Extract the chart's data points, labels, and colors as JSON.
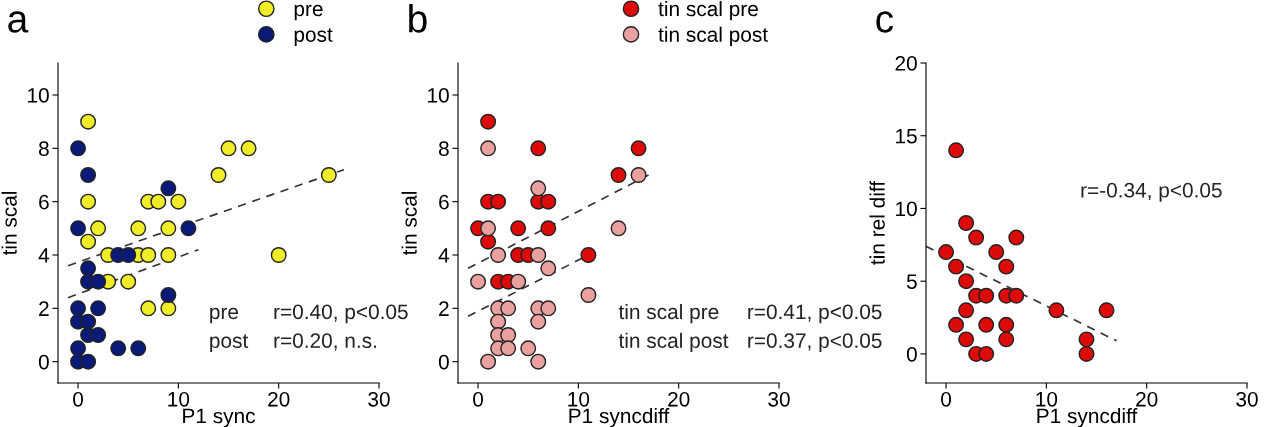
{
  "chart_data": [
    {
      "type": "scatter",
      "title": "a",
      "xlabel": "P1 sync",
      "ylabel": "tin scal",
      "xlim": [
        -2,
        30
      ],
      "ylim": [
        -0.8,
        11.2
      ],
      "xticks": [
        0,
        10,
        20,
        30
      ],
      "yticks": [
        0,
        2,
        4,
        6,
        8,
        10
      ],
      "grid": false,
      "legend": "top",
      "marker": "circle",
      "series": [
        {
          "name": "pre",
          "color": "#f0ec28",
          "x": [
            1,
            15,
            17,
            14,
            25,
            1,
            7,
            8,
            10,
            2,
            6,
            9,
            1,
            3,
            6,
            7,
            9,
            20,
            3,
            5,
            7,
            9
          ],
          "values": [
            9,
            8,
            8,
            7,
            7,
            6,
            6,
            6,
            6,
            5,
            5,
            5,
            4.5,
            4,
            4,
            4,
            4,
            4,
            3,
            3,
            2,
            2
          ]
        },
        {
          "name": "post",
          "color": "#0a1a78",
          "x": [
            0,
            1,
            9,
            0,
            11,
            4,
            5,
            1,
            1,
            2,
            9,
            0,
            2,
            0,
            1,
            1,
            2,
            0,
            4,
            6,
            0,
            1
          ],
          "values": [
            8,
            7,
            6.5,
            5,
            5,
            4,
            4,
            3.5,
            3,
            3,
            2.5,
            2,
            2,
            1.5,
            1.5,
            1,
            1,
            0.5,
            0.5,
            0.5,
            0,
            0
          ]
        },
        {
          "type": "line",
          "line_style": "dashed",
          "marker": "none",
          "color": "#333333",
          "x": [
            -1,
            26.5
          ],
          "values": [
            3.6,
            7.2
          ]
        },
        {
          "type": "line",
          "line_style": "dashed",
          "marker": "none",
          "color": "#333333",
          "x": [
            -1,
            12
          ],
          "values": [
            2.4,
            4.2
          ]
        }
      ],
      "annotations": [
        "pre",
        "r=0.40, p<0.05",
        "post",
        "r=0.20, n.s."
      ]
    },
    {
      "type": "scatter",
      "title": "b",
      "xlabel": "P1 syncdiff",
      "ylabel": "tin scal",
      "xlim": [
        -2,
        30
      ],
      "ylim": [
        -0.8,
        11.2
      ],
      "xticks": [
        0,
        10,
        20,
        30
      ],
      "yticks": [
        0,
        2,
        4,
        6,
        8,
        10
      ],
      "grid": false,
      "legend": "top",
      "marker": "circle",
      "series": [
        {
          "name": "tin scal pre",
          "color": "#dd0a0a",
          "x": [
            1,
            6,
            16,
            14,
            1,
            2,
            6,
            7,
            0,
            4,
            7,
            1,
            4,
            5,
            11,
            2,
            3
          ],
          "values": [
            9,
            8,
            8,
            7,
            6,
            6,
            6,
            6,
            5,
            5,
            5,
            4.5,
            4,
            4,
            4,
            3,
            3
          ]
        },
        {
          "name": "tin scal post",
          "color": "#eba0a0",
          "x": [
            1,
            16,
            6,
            1,
            14,
            2,
            6,
            7,
            0,
            4,
            11,
            2,
            3,
            6,
            7,
            2,
            6,
            2,
            3,
            2,
            3,
            5,
            1,
            6
          ],
          "values": [
            8,
            7,
            6.5,
            5,
            5,
            4,
            4,
            3.5,
            3,
            3,
            2.5,
            2,
            2,
            2,
            2,
            1.5,
            1.5,
            1,
            1,
            0.5,
            0.5,
            0.5,
            0,
            0
          ]
        },
        {
          "type": "line",
          "line_style": "dashed",
          "marker": "none",
          "color": "#333333",
          "x": [
            -1,
            17
          ],
          "values": [
            3.5,
            7
          ]
        },
        {
          "type": "line",
          "line_style": "dashed",
          "marker": "none",
          "color": "#333333",
          "x": [
            -1,
            11
          ],
          "values": [
            1.7,
            4
          ]
        }
      ],
      "annotations": [
        "tin scal pre",
        "r=0.41, p<0.05",
        "tin scal post",
        "r=0.37, p<0.05"
      ]
    },
    {
      "type": "scatter",
      "title": "c",
      "xlabel": "P1 syncdiff",
      "ylabel": "tin rel diff",
      "xlim": [
        -2,
        30
      ],
      "ylim": [
        -2,
        20
      ],
      "xticks": [
        0,
        10,
        20,
        30
      ],
      "yticks": [
        0,
        5,
        10,
        15,
        20
      ],
      "grid": false,
      "legend": false,
      "marker": "circle",
      "series": [
        {
          "color": "#dd0a0a",
          "x": [
            1,
            2,
            3,
            7,
            0,
            5,
            1,
            6,
            2,
            3,
            4,
            6,
            7,
            2,
            11,
            16,
            1,
            4,
            6,
            2,
            6,
            14,
            3,
            4,
            14
          ],
          "values": [
            14,
            9,
            8,
            8,
            7,
            7,
            6,
            6,
            5,
            4,
            4,
            4,
            4,
            3,
            3,
            3,
            2,
            2,
            2,
            1,
            1,
            1,
            0,
            0,
            0
          ]
        },
        {
          "type": "line",
          "line_style": "dashed",
          "marker": "none",
          "color": "#333333",
          "x": [
            -2,
            17
          ],
          "values": [
            7.4,
            0.9
          ]
        }
      ],
      "annotations": [
        "r=-0.34, p<0.05"
      ]
    }
  ]
}
